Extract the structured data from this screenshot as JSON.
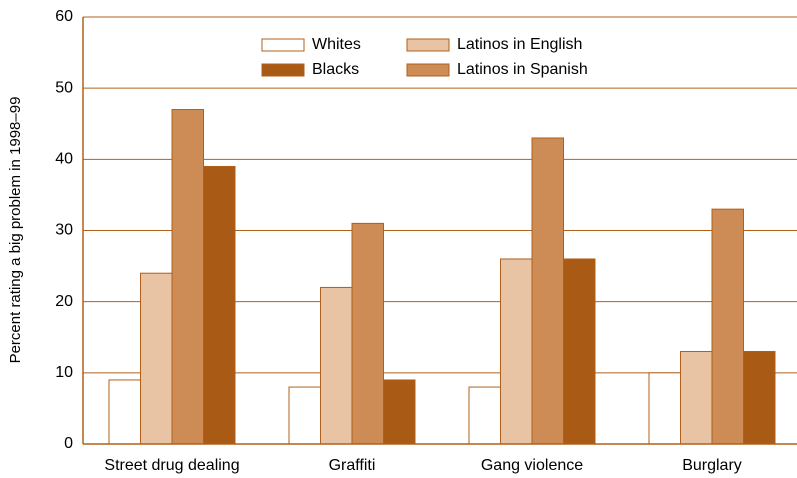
{
  "chart_data": {
    "type": "bar",
    "y_label": "Percent rating a big problem in 1998–99",
    "categories": [
      "Street drug dealing",
      "Graffiti",
      "Gang violence",
      "Burglary"
    ],
    "series": [
      {
        "name": "Whites",
        "color": "#ffffff",
        "values": [
          9,
          8,
          8,
          10
        ]
      },
      {
        "name": "Latinos in English",
        "color": "#e8c4a4",
        "values": [
          24,
          22,
          26,
          13
        ]
      },
      {
        "name": "Latinos in Spanish",
        "color": "#cd8b55",
        "values": [
          47,
          31,
          43,
          33
        ]
      },
      {
        "name": "Blacks",
        "color": "#a95a14",
        "values": [
          39,
          9,
          26,
          13
        ]
      }
    ],
    "edge_color": "#b0601c",
    "ylim": [
      0,
      60
    ],
    "yticks": [
      0,
      10,
      20,
      30,
      40,
      50,
      60
    ],
    "grid": true
  }
}
